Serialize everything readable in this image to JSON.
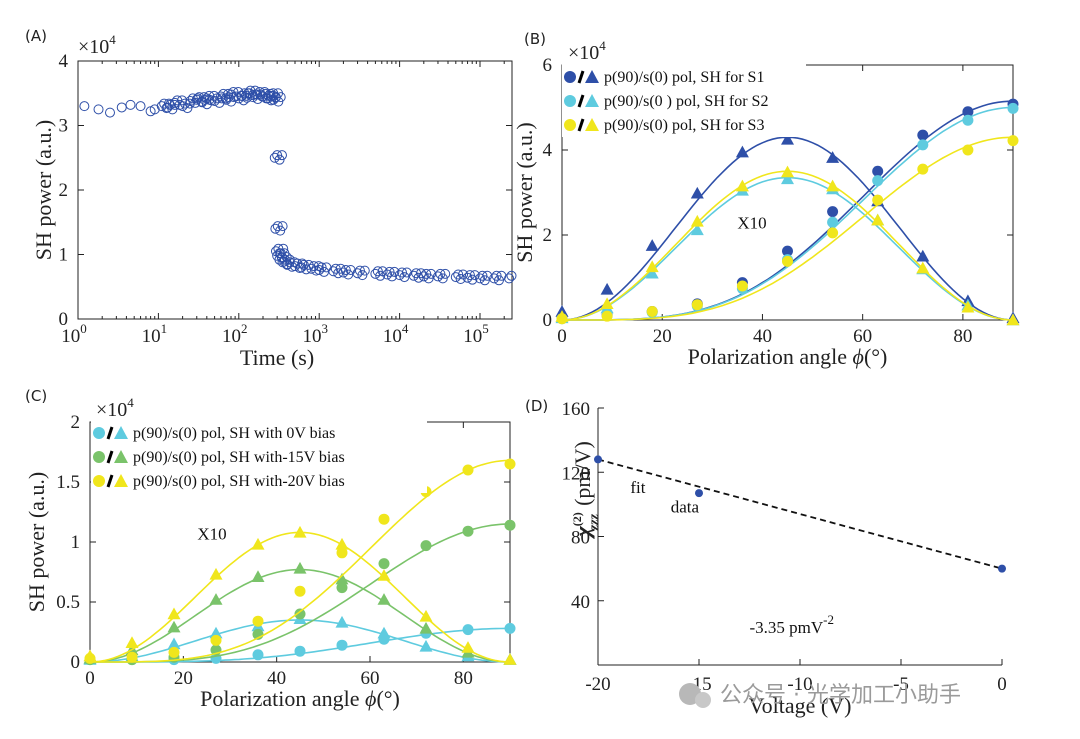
{
  "colors": {
    "blue": "#2e4fa8",
    "cyan": "#5ecbdf",
    "yellow": "#f0e61c",
    "green": "#7ac36a",
    "axis": "#222222",
    "fit": "#111111"
  },
  "watermark": "公众号 · 光学加工小助手",
  "chart_data": [
    {
      "id": "A",
      "panel_label": "(A)",
      "type": "scatter",
      "xscale": "log",
      "xlim": [
        1,
        250000
      ],
      "ylim": [
        0,
        4
      ],
      "multiplier": "×10",
      "multiplier_exp": "4",
      "xlabel": "Time (s)",
      "ylabel": "SH power (a.u.)",
      "xticks_base": [
        "10",
        "10",
        "10",
        "10",
        "10",
        "10"
      ],
      "xticks_exp": [
        "0",
        "1",
        "2",
        "3",
        "4",
        "5"
      ],
      "yticks": [
        "0",
        "1",
        "2",
        "3",
        "4"
      ],
      "series": [
        {
          "name": "SH power",
          "color": "blue",
          "marker": "open-circle",
          "points": [
            [
              1.2,
              3.3
            ],
            [
              1.8,
              3.25
            ],
            [
              2.5,
              3.2
            ],
            [
              3.5,
              3.28
            ],
            [
              4.5,
              3.32
            ],
            [
              6,
              3.3
            ],
            [
              8,
              3.22
            ],
            [
              9,
              3.25
            ],
            [
              11,
              3.3
            ],
            [
              13,
              3.28
            ],
            [
              16,
              3.35
            ],
            [
              20,
              3.3
            ],
            [
              25,
              3.38
            ],
            [
              30,
              3.4
            ],
            [
              35,
              3.36
            ],
            [
              40,
              3.42
            ],
            [
              50,
              3.38
            ],
            [
              60,
              3.45
            ],
            [
              70,
              3.4
            ],
            [
              80,
              3.48
            ],
            [
              100,
              3.42
            ],
            [
              110,
              3.46
            ],
            [
              130,
              3.5
            ],
            [
              150,
              3.44
            ],
            [
              170,
              3.48
            ],
            [
              200,
              3.45
            ],
            [
              220,
              3.42
            ],
            [
              250,
              3.46
            ],
            [
              270,
              3.4
            ],
            [
              280,
              2.5
            ],
            [
              285,
              1.4
            ],
            [
              290,
              1.05
            ],
            [
              300,
              0.98
            ],
            [
              320,
              0.92
            ],
            [
              350,
              0.88
            ],
            [
              400,
              0.84
            ],
            [
              500,
              0.82
            ],
            [
              600,
              0.8
            ],
            [
              800,
              0.78
            ],
            [
              1000,
              0.76
            ],
            [
              1500,
              0.74
            ],
            [
              2000,
              0.72
            ],
            [
              3000,
              0.71
            ],
            [
              5000,
              0.7
            ],
            [
              7000,
              0.69
            ],
            [
              10000,
              0.68
            ],
            [
              15000,
              0.67
            ],
            [
              20000,
              0.66
            ],
            [
              30000,
              0.66
            ],
            [
              50000,
              0.65
            ],
            [
              70000,
              0.64
            ],
            [
              100000,
              0.63
            ],
            [
              150000,
              0.63
            ],
            [
              230000,
              0.63
            ]
          ]
        }
      ]
    },
    {
      "id": "B",
      "panel_label": "(B)",
      "type": "scatter+line",
      "xlim": [
        0,
        90
      ],
      "ylim": [
        0,
        6
      ],
      "multiplier": "×10",
      "multiplier_exp": "4",
      "xlabel": "Polarization angle ",
      "xlabel_symbol": "ϕ",
      "xlabel_unit": "(°)",
      "ylabel": "SH power (a.u.)",
      "xticks": [
        "0",
        "20",
        "40",
        "60",
        "80"
      ],
      "yticks": [
        "0",
        "2",
        "4",
        "6"
      ],
      "x": [
        0,
        9,
        18,
        27,
        36,
        45,
        54,
        63,
        72,
        81,
        90
      ],
      "annotations": [
        {
          "text": "X10",
          "x": 35,
          "y": 2.15
        }
      ],
      "legend": [
        {
          "label": "p(90)/s(0) pol, SH for S1",
          "color": "blue"
        },
        {
          "label": "p(90)/s(0 ) pol, SH for S2",
          "color": "cyan"
        },
        {
          "label": "p(90)/s(0) pol, SH for S3",
          "color": "yellow"
        }
      ],
      "series": [
        {
          "name": "S1 circle",
          "color": "blue",
          "marker": "circle",
          "values": [
            0.05,
            0.12,
            0.2,
            0.38,
            0.88,
            1.62,
            2.55,
            3.5,
            4.35,
            4.9,
            5.08
          ],
          "fit": "sin2",
          "amp": 5.15,
          "offset": 0.0
        },
        {
          "name": "S1 triangle",
          "color": "blue",
          "marker": "triangle",
          "values": [
            0.2,
            0.72,
            1.75,
            2.98,
            3.95,
            4.25,
            3.82,
            2.8,
            1.5,
            0.45,
            0.05
          ],
          "fit": "sin22",
          "amp": 4.3,
          "offset": 0.0
        },
        {
          "name": "S2 circle",
          "color": "cyan",
          "marker": "circle",
          "values": [
            0.03,
            0.1,
            0.18,
            0.33,
            0.74,
            1.42,
            2.3,
            3.28,
            4.12,
            4.7,
            4.98
          ],
          "fit": "sin2",
          "amp": 5.0,
          "offset": 0.0
        },
        {
          "name": "S2 triangle",
          "color": "cyan",
          "marker": "triangle",
          "values": [
            0.05,
            0.28,
            1.1,
            2.12,
            3.05,
            3.32,
            3.08,
            2.35,
            1.2,
            0.35,
            0.0
          ],
          "fit": "sin22",
          "amp": 3.35,
          "offset": 0.0
        },
        {
          "name": "S3 circle",
          "color": "yellow",
          "marker": "circle",
          "values": [
            0.03,
            0.09,
            0.2,
            0.36,
            0.8,
            1.38,
            2.05,
            2.82,
            3.55,
            4.0,
            4.22
          ],
          "fit": "sin2",
          "amp": 4.3,
          "offset": 0.0
        },
        {
          "name": "S3 triangle",
          "color": "yellow",
          "marker": "triangle",
          "values": [
            0.08,
            0.38,
            1.25,
            2.32,
            3.15,
            3.48,
            3.15,
            2.35,
            1.22,
            0.3,
            0.0
          ],
          "fit": "sin22",
          "amp": 3.5,
          "offset": 0.0
        }
      ]
    },
    {
      "id": "C",
      "panel_label": "(C)",
      "type": "scatter+line",
      "xlim": [
        0,
        90
      ],
      "ylim": [
        0,
        2
      ],
      "multiplier": "×10",
      "multiplier_exp": "4",
      "xlabel": "Polarization angle ",
      "xlabel_symbol": "ϕ",
      "xlabel_unit": "(°)",
      "ylabel": "SH power (a.u.)",
      "xticks": [
        "0",
        "20",
        "40",
        "60",
        "80"
      ],
      "yticks": [
        "0",
        "0.5",
        "1",
        "1.5",
        "2"
      ],
      "x": [
        0,
        9,
        18,
        27,
        36,
        45,
        54,
        63,
        72,
        81,
        90
      ],
      "annotations": [
        {
          "text": "X10",
          "x": 23,
          "y": 1.02
        }
      ],
      "legend": [
        {
          "label": "p(90)/s(0) pol, SH with 0V bias",
          "color": "cyan"
        },
        {
          "label": "p(90)/s(0) pol, SH with-15V bias",
          "color": "green"
        },
        {
          "label": "p(90)/s(0) pol, SH with-20V bias",
          "color": "yellow"
        }
      ],
      "series": [
        {
          "name": "0V circle",
          "color": "cyan",
          "marker": "circle",
          "values": [
            0.02,
            0.02,
            0.02,
            0.03,
            0.06,
            0.09,
            0.14,
            0.19,
            0.24,
            0.27,
            0.28
          ],
          "fit": "sin2",
          "amp": 0.28,
          "offset": 0.0
        },
        {
          "name": "0V triangle",
          "color": "cyan",
          "marker": "triangle",
          "values": [
            0.02,
            0.05,
            0.15,
            0.24,
            0.3,
            0.36,
            0.33,
            0.24,
            0.13,
            0.05,
            0.02
          ],
          "fit": "sin22",
          "amp": 0.35,
          "offset": 0.0
        },
        {
          "name": "-15V circle",
          "color": "green",
          "marker": "circle",
          "values": [
            0.02,
            0.02,
            0.04,
            0.1,
            0.23,
            0.4,
            0.62,
            0.82,
            0.97,
            1.09,
            1.14
          ],
          "fit": "sin2",
          "amp": 1.15,
          "offset": 0.0
        },
        {
          "name": "-15V triangle",
          "color": "green",
          "marker": "triangle",
          "values": [
            0.03,
            0.1,
            0.29,
            0.52,
            0.71,
            0.78,
            0.69,
            0.52,
            0.28,
            0.08,
            0.02
          ],
          "fit": "sin22",
          "amp": 0.77,
          "offset": 0.0
        },
        {
          "name": "-20V circle",
          "color": "yellow",
          "marker": "circle",
          "values": [
            0.03,
            0.04,
            0.08,
            0.18,
            0.34,
            0.59,
            0.91,
            1.19,
            1.42,
            1.6,
            1.65
          ],
          "fit": "sin2",
          "amp": 1.68,
          "offset": 0.0
        },
        {
          "name": "-20V triangle",
          "color": "yellow",
          "marker": "triangle",
          "values": [
            0.05,
            0.16,
            0.4,
            0.73,
            0.98,
            1.08,
            0.98,
            0.72,
            0.38,
            0.12,
            0.02
          ],
          "fit": "sin22",
          "amp": 1.08,
          "offset": 0.0
        }
      ]
    },
    {
      "id": "D",
      "panel_label": "(D)",
      "type": "scatter+line",
      "xlim": [
        -20,
        0
      ],
      "ylim": [
        0,
        160
      ],
      "xlabel": "Voltage (V)",
      "ylabel_main": "χ",
      "ylabel_sup": "(2)",
      "ylabel_sub": "zzz",
      "ylabel_unit": "(pm/V)",
      "xticks": [
        "-20",
        "-15",
        "-10",
        "-5",
        "0"
      ],
      "yticks": [
        "40",
        "80",
        "120",
        "160"
      ],
      "points": [
        [
          -20,
          128
        ],
        [
          -15,
          107
        ],
        [
          0,
          60
        ]
      ],
      "fit_line": [
        [
          -20,
          128
        ],
        [
          0,
          60
        ]
      ],
      "annotations": [
        {
          "text": "fit",
          "x": -18.4,
          "y": 107
        },
        {
          "text": "data",
          "x": -16.4,
          "y": 95
        }
      ],
      "slope_label": "-3.35 pmV",
      "slope_exp": "-2",
      "slope_pos": [
        -12.5,
        20
      ]
    }
  ]
}
